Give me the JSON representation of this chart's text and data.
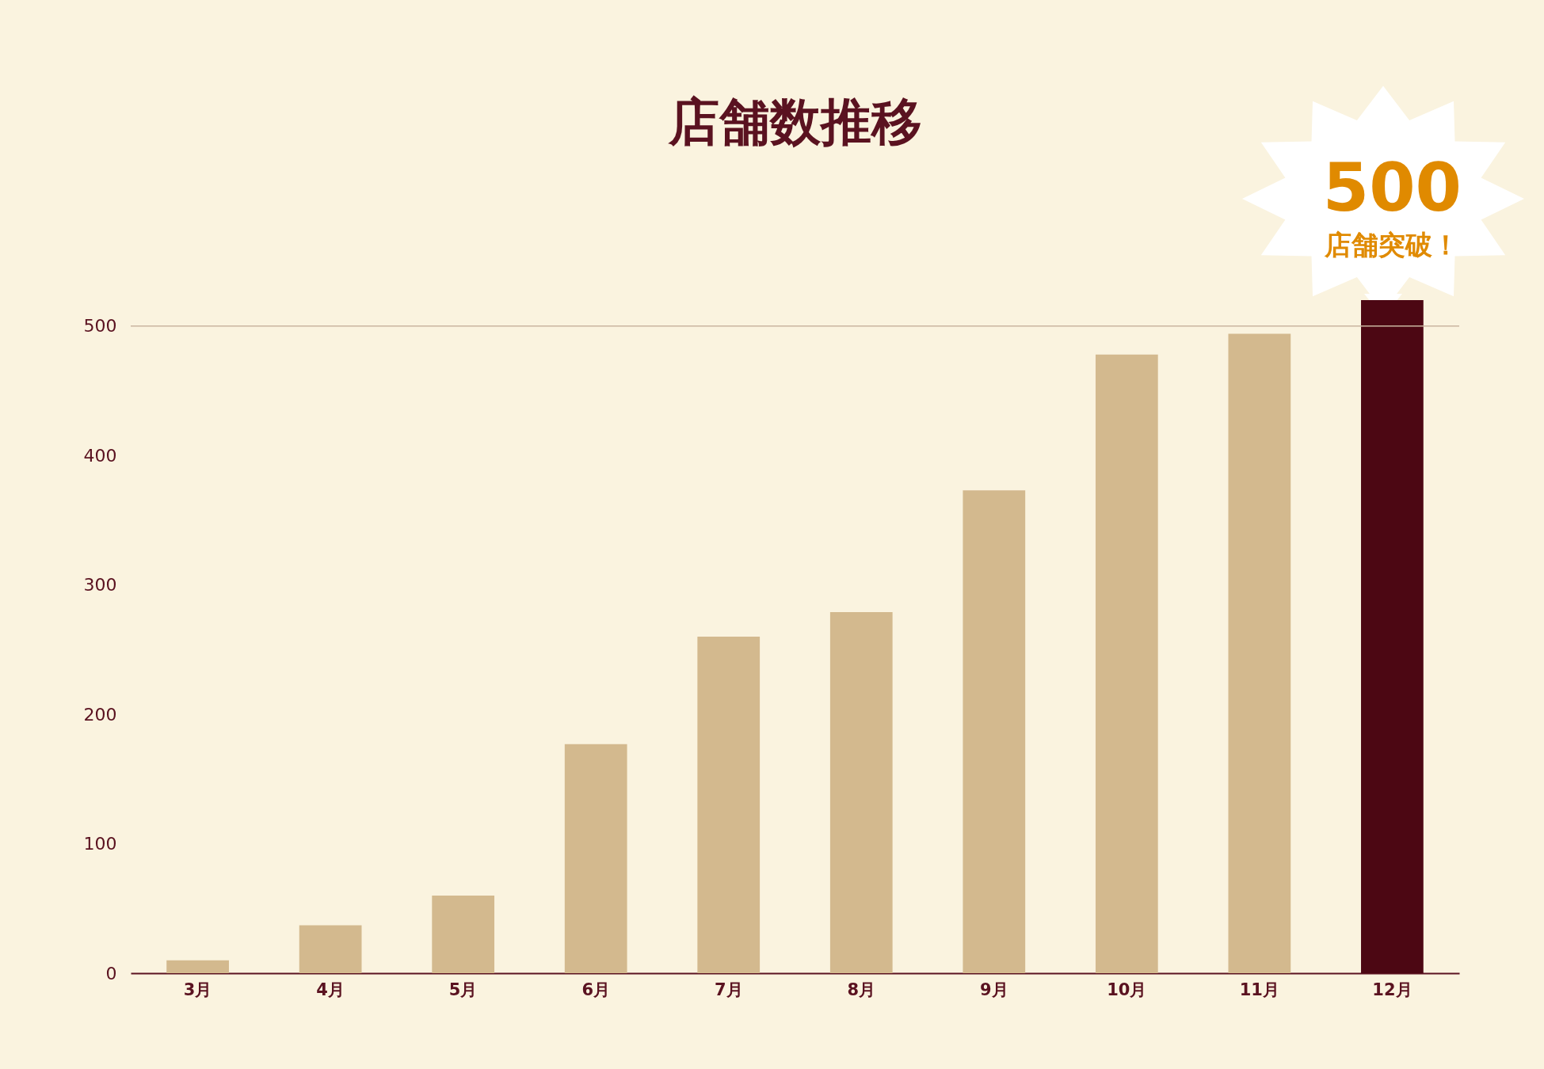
{
  "chart_data": {
    "type": "bar",
    "title": "店舗数推移",
    "categories": [
      "3月",
      "4月",
      "5月",
      "6月",
      "7月",
      "8月",
      "9月",
      "10月",
      "11月",
      "12月"
    ],
    "values": [
      10,
      37,
      60,
      177,
      260,
      279,
      373,
      478,
      494,
      520
    ],
    "colors": [
      "#d3b98e",
      "#d3b98e",
      "#d3b98e",
      "#d3b98e",
      "#d3b98e",
      "#d3b98e",
      "#d3b98e",
      "#d3b98e",
      "#d3b98e",
      "#4c0713"
    ],
    "ylim": [
      0,
      520
    ],
    "yticks": [
      0,
      100,
      200,
      300,
      400,
      500
    ],
    "ref_lines": [
      {
        "axis": "y",
        "value": 500,
        "color": "#c9b5a0"
      }
    ],
    "annotations": [
      {
        "text": "500",
        "x": "12月",
        "y": 520
      },
      {
        "text": "店舗突破！",
        "x": "12月",
        "y": 520
      }
    ]
  }
}
